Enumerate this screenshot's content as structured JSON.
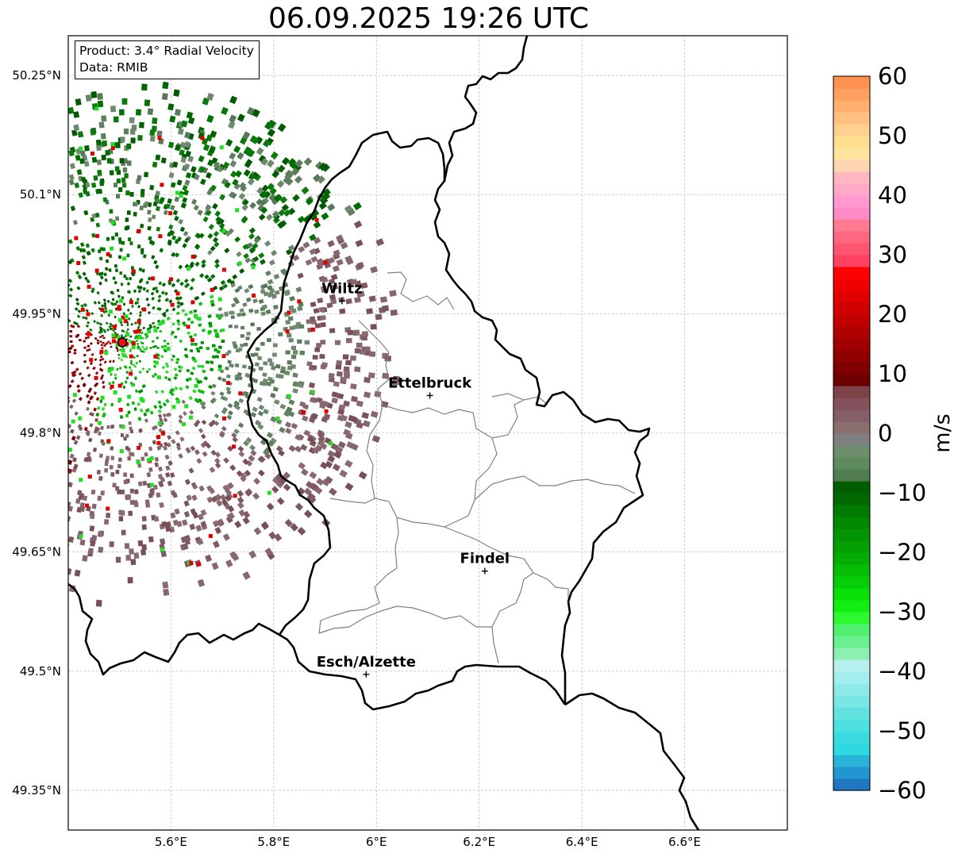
{
  "title": "06.09.2025 19:26 UTC",
  "info_box": {
    "line1": "Product: 3.4° Radial Velocity",
    "line2": "Data: RMIB"
  },
  "map": {
    "lat_ticks": [
      "50.25°N",
      "50.1°N",
      "49.95°N",
      "49.8°N",
      "49.65°N",
      "49.5°N",
      "49.35°N"
    ],
    "lon_ticks": [
      "5.6°E",
      "5.8°E",
      "6°E",
      "6.2°E",
      "6.4°E",
      "6.6°E"
    ],
    "extent": {
      "lon_min": 5.4,
      "lon_max": 6.8,
      "lat_min": 49.3,
      "lat_max": 50.3
    },
    "gridlines": true,
    "radar_site": {
      "lon": 5.505,
      "lat": 49.914
    },
    "cities": [
      {
        "name": "Wiltz",
        "lon": 5.933,
        "lat": 49.966
      },
      {
        "name": "Ettelbruck",
        "lon": 6.104,
        "lat": 49.847
      },
      {
        "name": "Findel",
        "lon": 6.211,
        "lat": 49.626
      },
      {
        "name": "Esch/Alzette",
        "lon": 5.98,
        "lat": 49.496
      }
    ]
  },
  "colorbar": {
    "label": "m/s",
    "min": -60,
    "max": 60,
    "ticks": [
      "60",
      "50",
      "40",
      "30",
      "20",
      "10",
      "0",
      "−10",
      "−20",
      "−30",
      "−40",
      "−50",
      "−60"
    ],
    "colors": [
      "#1f77c0",
      "#2196d0",
      "#2ab3d8",
      "#2fd9e0",
      "#3adce0",
      "#4fe0e0",
      "#63e2e2",
      "#7ae6e6",
      "#8ee9e9",
      "#a2eded",
      "#b8f0f0",
      "#8cf0b0",
      "#6af090",
      "#50ef70",
      "#2ef830",
      "#12ee12",
      "#08e008",
      "#06cf06",
      "#05bd05",
      "#04ac04",
      "#03a003",
      "#029402",
      "#018801",
      "#007a00",
      "#006a00",
      "#005d00",
      "#4f7d4f",
      "#5e8a5e",
      "#6d8e6d",
      "#7f7f7f",
      "#8a6f6f",
      "#855e67",
      "#83525b",
      "#7d4348",
      "#6e0000",
      "#7f0000",
      "#8f0000",
      "#a00000",
      "#b00000",
      "#c00000",
      "#d10000",
      "#e00000",
      "#f00000",
      "#ff0000",
      "#ff4060",
      "#ff5570",
      "#ff6880",
      "#ff7b92",
      "#ff8ac8",
      "#ff99d0",
      "#ffa8c8",
      "#ffb8c0",
      "#ffd4b0",
      "#ffe4a0",
      "#ffe090",
      "#ffd090",
      "#ffc080",
      "#ffb070",
      "#ffa060",
      "#ff9050"
    ]
  }
}
